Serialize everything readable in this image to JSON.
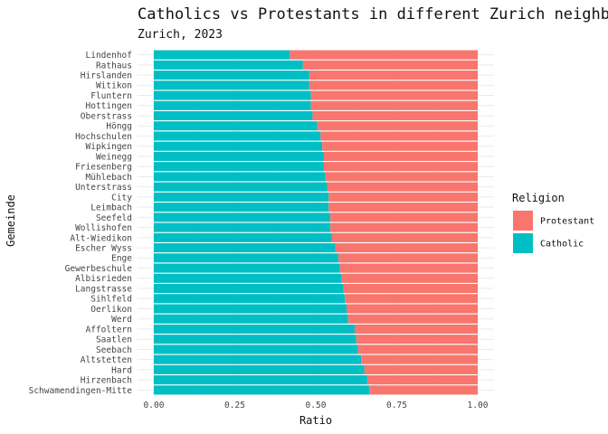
{
  "chart_data": {
    "type": "bar",
    "orientation": "horizontal",
    "stacked": true,
    "title": "Catholics vs Protestants in different Zurich neighborhoods",
    "subtitle": "Zurich, 2023",
    "xlabel": "Ratio",
    "ylabel": "Gemeinde",
    "xlim": [
      0,
      1
    ],
    "x_ticks": [
      "0.00",
      "0.25",
      "0.50",
      "0.75",
      "1.00"
    ],
    "categories": [
      "Lindenhof",
      "Rathaus",
      "Hirslanden",
      "Witikon",
      "Fluntern",
      "Hottingen",
      "Oberstrass",
      "Höngg",
      "Hochschulen",
      "Wipkingen",
      "Weinegg",
      "Friesenberg",
      "Mühlebach",
      "Unterstrass",
      "City",
      "Leimbach",
      "Seefeld",
      "Wollishofen",
      "Alt-Wiedikon",
      "Escher Wyss",
      "Enge",
      "Gewerbeschule",
      "Albisrieden",
      "Langstrasse",
      "Sihlfeld",
      "Oerlikon",
      "Werd",
      "Affoltern",
      "Saatlen",
      "Seebach",
      "Altstetten",
      "Hard",
      "Hirzenbach",
      "Schwamendingen-Mitte"
    ],
    "series": [
      {
        "name": "Catholic",
        "color": "#00BFC4",
        "values": [
          0.42,
          0.46,
          0.48,
          0.48,
          0.485,
          0.485,
          0.49,
          0.505,
          0.515,
          0.52,
          0.525,
          0.525,
          0.53,
          0.535,
          0.54,
          0.54,
          0.545,
          0.545,
          0.55,
          0.56,
          0.57,
          0.575,
          0.58,
          0.585,
          0.59,
          0.595,
          0.6,
          0.62,
          0.625,
          0.63,
          0.64,
          0.65,
          0.66,
          0.665
        ]
      },
      {
        "name": "Protestant",
        "color": "#F8766D",
        "values": [
          0.58,
          0.54,
          0.52,
          0.52,
          0.515,
          0.515,
          0.51,
          0.495,
          0.485,
          0.48,
          0.475,
          0.475,
          0.47,
          0.465,
          0.46,
          0.46,
          0.455,
          0.455,
          0.45,
          0.44,
          0.43,
          0.425,
          0.42,
          0.415,
          0.41,
          0.405,
          0.4,
          0.38,
          0.375,
          0.37,
          0.36,
          0.35,
          0.34,
          0.335
        ]
      }
    ],
    "legend": {
      "title": "Religion",
      "position": "right",
      "entries": [
        {
          "label": "Protestant",
          "color": "#F8766D"
        },
        {
          "label": "Catholic",
          "color": "#00BFC4"
        }
      ]
    },
    "grid": true
  }
}
